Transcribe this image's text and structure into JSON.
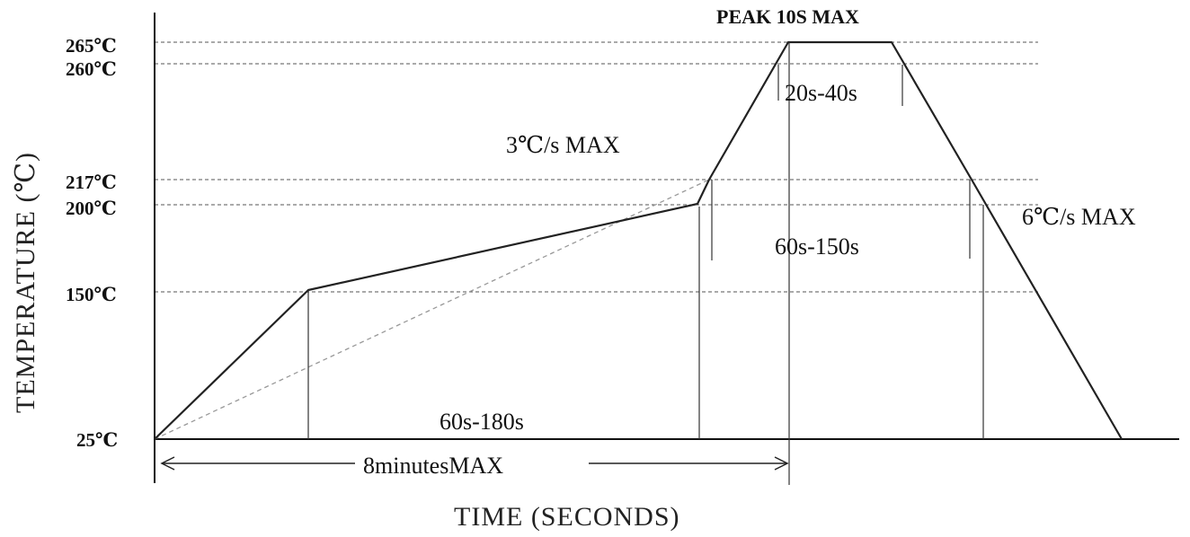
{
  "chart_data": {
    "type": "line",
    "title": "",
    "xlabel": "TIME (SECONDS)",
    "ylabel": "TEMPERATURE (℃)",
    "y_ticks": [
      "25℃",
      "150℃",
      "200℃",
      "217℃",
      "260℃",
      "265℃"
    ],
    "y_tick_values": [
      25,
      150,
      200,
      217,
      260,
      265
    ],
    "grid": "dashed horizontal reference lines at tick temperatures",
    "series": [
      {
        "style": "solid",
        "points_temp": [
          25,
          150,
          200,
          217,
          265,
          265,
          217,
          25
        ]
      },
      {
        "style": "dashed",
        "points_temp": [
          25,
          217
        ]
      }
    ],
    "annotations": {
      "peak": "PEAK 10S MAX",
      "peak_duration": "20s-40s",
      "ramp_up": "3℃/s MAX",
      "ramp_down": "6℃/s MAX",
      "above_liquidus": "60s-150s",
      "preheat": "60s-180s",
      "total": "8minutesMAX"
    }
  }
}
